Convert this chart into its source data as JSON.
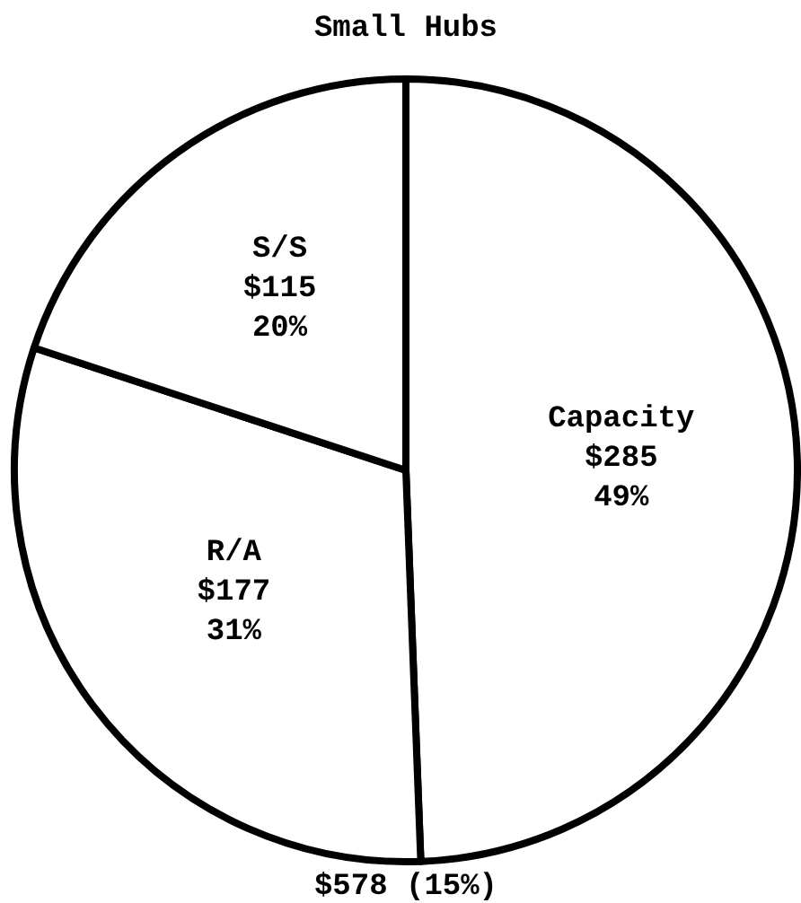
{
  "chart_data": {
    "type": "pie",
    "title": "Small Hubs",
    "categories": [
      "Capacity",
      "R/A",
      "S/S"
    ],
    "values": [
      285,
      177,
      115
    ],
    "value_labels": [
      "$285\n49%",
      "$177\n31%",
      "$115\n20%"
    ],
    "colors": [
      "#ffffff",
      "#ffffff",
      "#ffffff"
    ],
    "annotations": [
      "$578 (15%)"
    ]
  }
}
